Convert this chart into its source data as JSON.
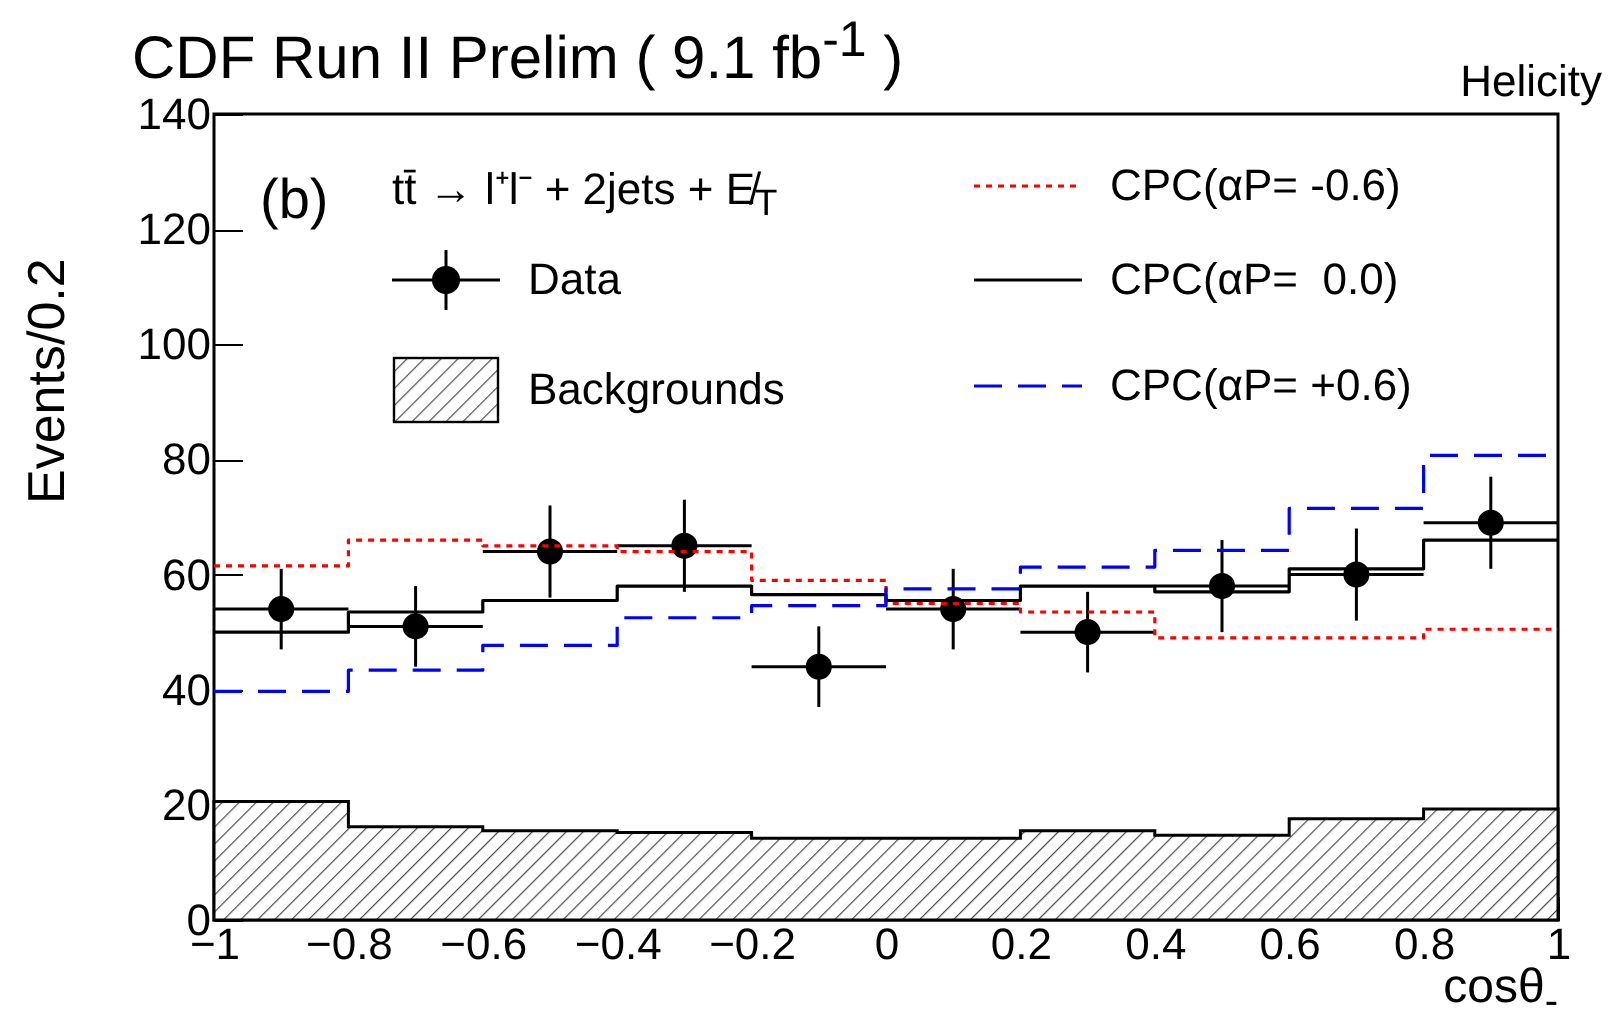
{
  "chart_data": {
    "type": "step",
    "title": "CDF Run II Prelim ( 9.1 fb$^{-1}$ )",
    "xlabel": "cosθ$_{-}$",
    "ylabel": "Events/0.2",
    "xlim": [
      -1,
      1
    ],
    "ylim": [
      0,
      140
    ],
    "xticks": [
      -1,
      -0.8,
      -0.6,
      -0.4,
      -0.2,
      0,
      0.2,
      0.4,
      0.6,
      0.8,
      1
    ],
    "yticks": [
      0,
      20,
      40,
      60,
      80,
      100,
      120,
      140
    ],
    "legend": "top",
    "annotations": [
      "(b)",
      "tt̄ → l⁺l⁻ + 2jets + E̸$_{T}$",
      "Helicity"
    ],
    "series": [
      {
        "name": "Data",
        "type": "scatter",
        "marker": "circle",
        "color": "#000000",
        "x": [
          -0.9,
          -0.7,
          -0.5,
          -0.3,
          -0.1,
          0.1,
          0.3,
          0.5,
          0.7,
          0.9
        ],
        "values": [
          54,
          51,
          64,
          65,
          44,
          54,
          50,
          58,
          60,
          69
        ],
        "errors": [
          7,
          7,
          8,
          8,
          7,
          7,
          7,
          8,
          8,
          8
        ],
        "xerrors": [
          0.1,
          0.1,
          0.1,
          0.1,
          0.1,
          0.1,
          0.1,
          0.1,
          0.1,
          0.1
        ]
      },
      {
        "name": "Backgrounds",
        "type": "area",
        "color": "#000000",
        "x": [
          -1,
          -0.8,
          -0.6,
          -0.4,
          -0.2,
          0,
          0.2,
          0.4,
          0.6,
          0.8,
          1
        ],
        "values": [
          20.6,
          16.2,
          15.5,
          15.2,
          14.2,
          14.2,
          15.5,
          14.7,
          17.6,
          19.3,
          19.3
        ]
      },
      {
        "name": "CPC(αP= -0.6)",
        "line_style": "dotted",
        "color": "#ff0000",
        "x": [
          -1,
          -0.8,
          -0.6,
          -0.4,
          -0.2,
          0,
          0.2,
          0.4,
          0.6,
          0.8,
          1
        ],
        "values": [
          61.5,
          66,
          65,
          64,
          59,
          55,
          53.5,
          49,
          49,
          50.5,
          50.5
        ]
      },
      {
        "name": "CPC(αP=  0.0)",
        "line_style": "solid",
        "color": "#000000",
        "x": [
          -1,
          -0.8,
          -0.6,
          -0.4,
          -0.2,
          0,
          0.2,
          0.4,
          0.6,
          0.8,
          1
        ],
        "values": [
          50,
          53.5,
          55.5,
          58,
          56.5,
          55.5,
          58,
          57,
          61,
          66,
          66
        ]
      },
      {
        "name": "CPC(αP= +0.6)",
        "line_style": "dashed",
        "color": "#0000ff",
        "x": [
          -1,
          -0.8,
          -0.6,
          -0.4,
          -0.2,
          0,
          0.2,
          0.4,
          0.6,
          0.8,
          1
        ],
        "values": [
          39.7,
          43.4,
          47.7,
          52.5,
          54.6,
          57.5,
          61.3,
          64.2,
          71.5,
          80.7,
          80.7
        ]
      }
    ]
  }
}
